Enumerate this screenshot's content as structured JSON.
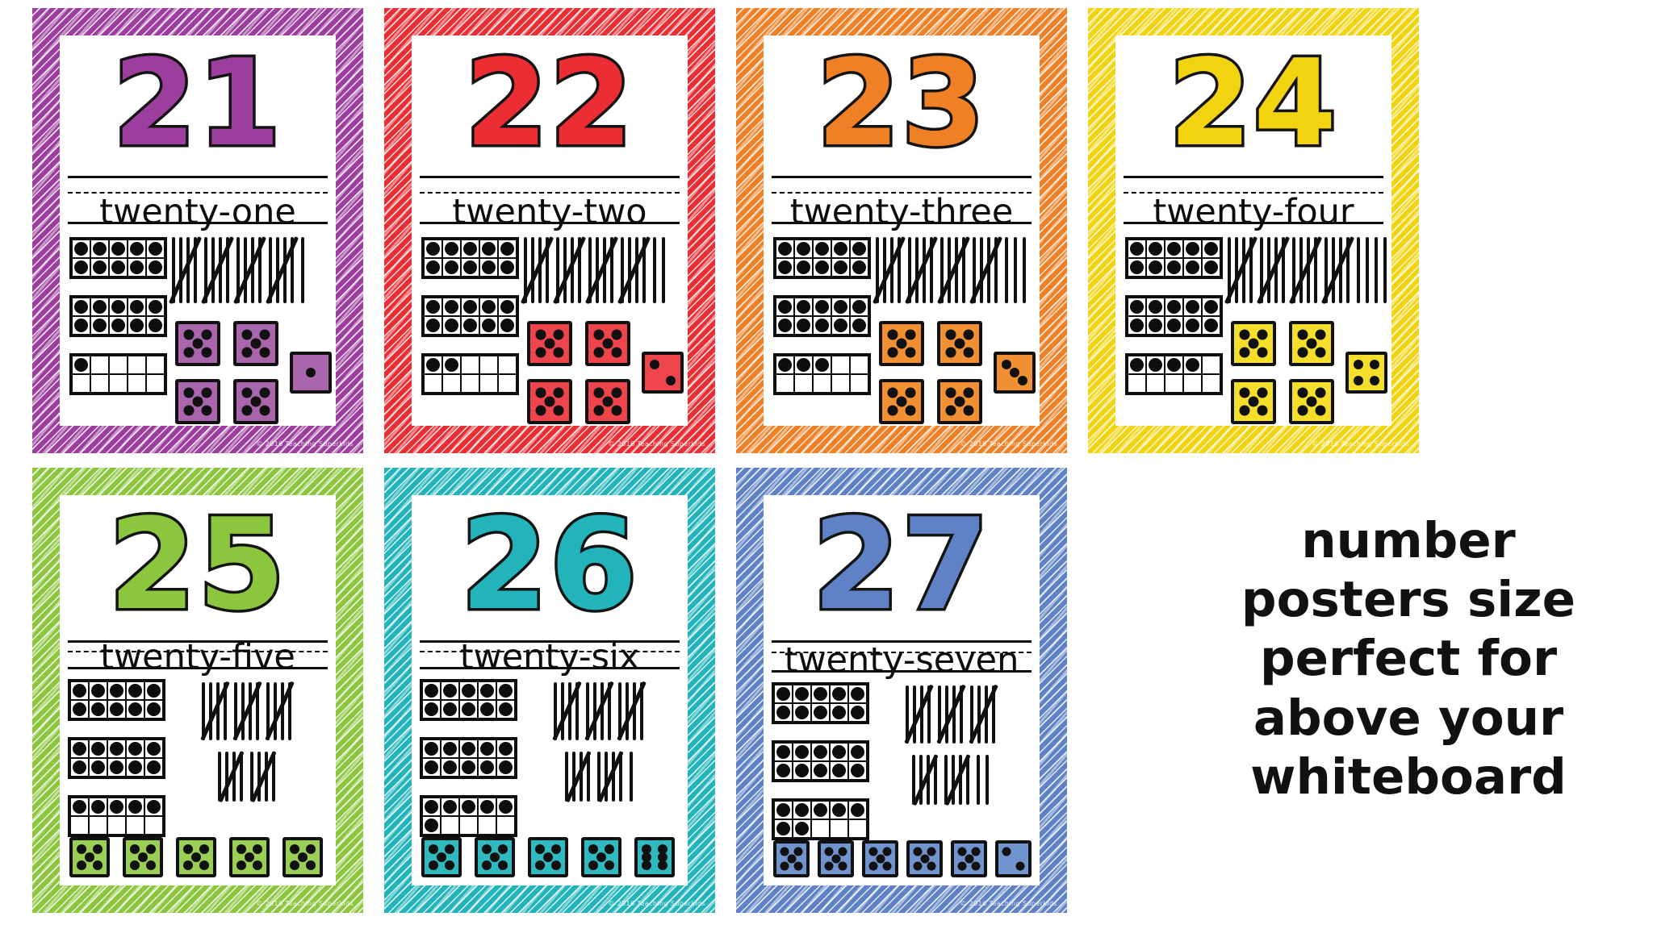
{
  "promo": {
    "lines": [
      "number",
      "posters size",
      "perfect for",
      "above your",
      "whiteboard"
    ],
    "color": "#111111"
  },
  "copyright_text": "© 2016 Teaching Superkids",
  "posters": [
    {
      "number": "21",
      "word": "twenty-one",
      "layout": "top",
      "theme_color": "#9c3e9e",
      "dice_color": "#aa66ad",
      "ten_frames": [
        10,
        10,
        1
      ],
      "tally_rows": [
        [
          5,
          5,
          5,
          5,
          1
        ]
      ],
      "dice": [
        5,
        5,
        5,
        5,
        1
      ]
    },
    {
      "number": "22",
      "word": "twenty-two",
      "layout": "top",
      "theme_color": "#eb2d34",
      "dice_color": "#ee444b",
      "ten_frames": [
        10,
        10,
        2
      ],
      "tally_rows": [
        [
          5,
          5,
          5,
          5,
          2
        ]
      ],
      "dice": [
        5,
        5,
        5,
        5,
        2
      ]
    },
    {
      "number": "23",
      "word": "twenty-three",
      "layout": "top",
      "theme_color": "#f08026",
      "dice_color": "#f19033",
      "ten_frames": [
        10,
        10,
        3
      ],
      "tally_rows": [
        [
          5,
          5,
          5,
          5,
          3
        ]
      ],
      "dice": [
        5,
        5,
        5,
        5,
        3
      ]
    },
    {
      "number": "24",
      "word": "twenty-four",
      "layout": "top",
      "theme_color": "#f2d30f",
      "dice_color": "#f6df2b",
      "ten_frames": [
        10,
        10,
        4
      ],
      "tally_rows": [
        [
          5,
          5,
          5,
          5,
          4
        ]
      ],
      "dice": [
        5,
        5,
        5,
        5,
        4
      ]
    },
    {
      "number": "25",
      "word": "twenty-five",
      "layout": "bottom",
      "theme_color": "#8cc63f",
      "dice_color": "#9ace55",
      "ten_frames": [
        10,
        10,
        5
      ],
      "tally_rows": [
        [
          5,
          5,
          5
        ],
        [
          5,
          5
        ]
      ],
      "dice": [
        5,
        5,
        5,
        5,
        5
      ]
    },
    {
      "number": "26",
      "word": "twenty-six",
      "layout": "bottom",
      "theme_color": "#22b4ba",
      "dice_color": "#30babf",
      "ten_frames": [
        10,
        10,
        6
      ],
      "tally_rows": [
        [
          5,
          5,
          5
        ],
        [
          5,
          5,
          1
        ]
      ],
      "dice": [
        5,
        5,
        5,
        5,
        6
      ]
    },
    {
      "number": "27",
      "word": "twenty-seven",
      "layout": "bottom",
      "theme_color": "#5e82c5",
      "dice_color": "#7193ce",
      "ten_frames": [
        10,
        10,
        7
      ],
      "tally_rows": [
        [
          5,
          5,
          5
        ],
        [
          5,
          5,
          2
        ]
      ],
      "dice": [
        5,
        5,
        5,
        5,
        5,
        2
      ]
    }
  ]
}
